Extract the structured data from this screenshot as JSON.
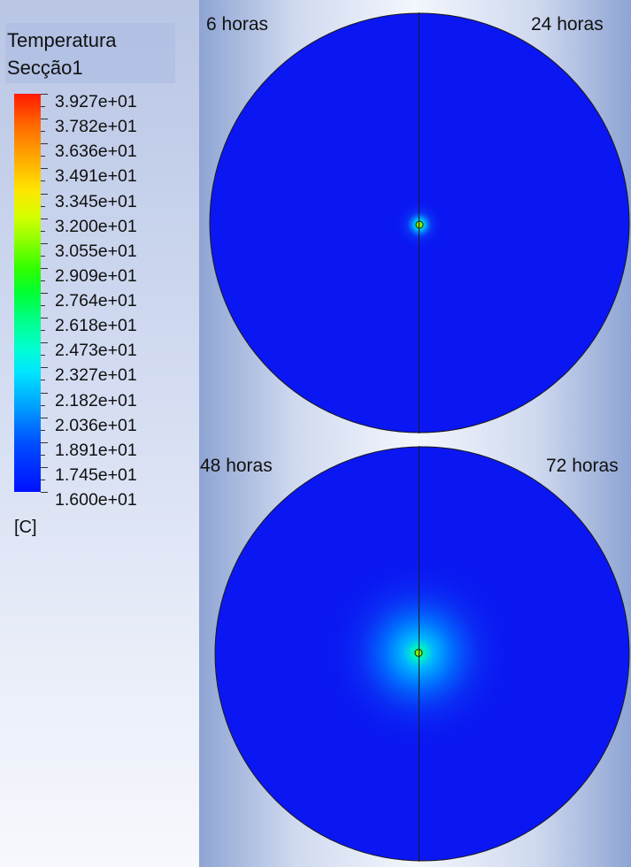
{
  "legend": {
    "title_line1": "Temperatura",
    "title_line2": "Secção1",
    "unit": "[C]",
    "values": [
      "3.927e+01",
      "3.782e+01",
      "3.636e+01",
      "3.491e+01",
      "3.345e+01",
      "3.200e+01",
      "3.055e+01",
      "2.909e+01",
      "2.764e+01",
      "2.618e+01",
      "2.473e+01",
      "2.327e+01",
      "2.182e+01",
      "2.036e+01",
      "1.891e+01",
      "1.745e+01",
      "1.600e+01"
    ],
    "colormap": [
      "#ff1a00",
      "#ffa800",
      "#ffe400",
      "#2fff00",
      "#00ffd0",
      "#009cff",
      "#0010ff"
    ]
  },
  "plots": {
    "top_left_label": "6 horas",
    "top_right_label": "24 horas",
    "bottom_left_label": "48 horas",
    "bottom_right_label": "72 horas",
    "field_color": "#0a17f2"
  }
}
